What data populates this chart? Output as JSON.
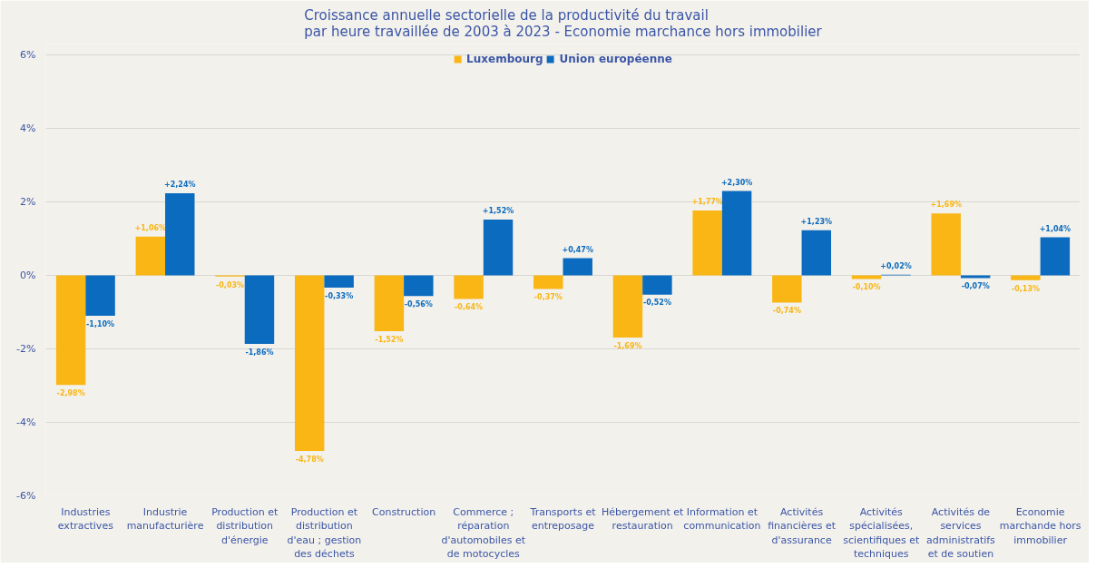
{
  "chart_data": {
    "type": "bar",
    "title": "Croissance annuelle sectorielle de la productivité du travail par heure travaillée de 2003 à 2023 - Economie marchance hors immobilier",
    "categories": [
      "Industries extractives",
      "Industrie manufacturière",
      "Production et distribution d'énergie",
      "Production et distribution d'eau ; gestion des déchets",
      "Construction",
      "Commerce ; réparation d'automobiles et de motocycles",
      "Transports et entreposage",
      "Hébergement et restauration",
      "Information et communication",
      "Activités financières et d'assurance",
      "Activités spécialisées, scientifiques et techniques",
      "Activités de services administratifs et de soutien",
      "Economie marchande hors immobilier"
    ],
    "series": [
      {
        "name": "Luxembourg",
        "color": "#f9b614",
        "values": [
          -2.98,
          1.06,
          -0.03,
          -4.78,
          -1.52,
          -0.64,
          -0.37,
          -1.69,
          1.77,
          -0.74,
          -0.1,
          1.69,
          -0.13
        ],
        "value_labels": [
          "-2,98%",
          "+1,06%",
          "-0,03%",
          "-4,78%",
          "-1,52%",
          "-0,64%",
          "-0,37%",
          "-1,69%",
          "+1,77%",
          "-0,74%",
          "-0,10%",
          "+1,69%",
          "-0,13%"
        ]
      },
      {
        "name": "Union européenne",
        "color": "#0a6bbf",
        "values": [
          -1.1,
          2.24,
          -1.86,
          -0.33,
          -0.56,
          1.52,
          0.47,
          -0.52,
          2.3,
          1.23,
          0.02,
          -0.07,
          1.04
        ],
        "value_labels": [
          "-1,10%",
          "+2,24%",
          "-1,86%",
          "-0,33%",
          "-0,56%",
          "+1,52%",
          "+0,47%",
          "-0,52%",
          "+2,30%",
          "+1,23%",
          "+0,02%",
          "-0,07%",
          "+1,04%"
        ]
      }
    ],
    "ylim": [
      -6,
      6
    ],
    "yticks": [
      {
        "value": -6,
        "label": "-6%"
      },
      {
        "value": -4,
        "label": "-4%"
      },
      {
        "value": -2,
        "label": "-2%"
      },
      {
        "value": 0,
        "label": "0%"
      },
      {
        "value": 2,
        "label": "2%"
      },
      {
        "value": 4,
        "label": "4%"
      },
      {
        "value": 6,
        "label": "6%"
      }
    ],
    "grid": "y",
    "legend": "top"
  }
}
